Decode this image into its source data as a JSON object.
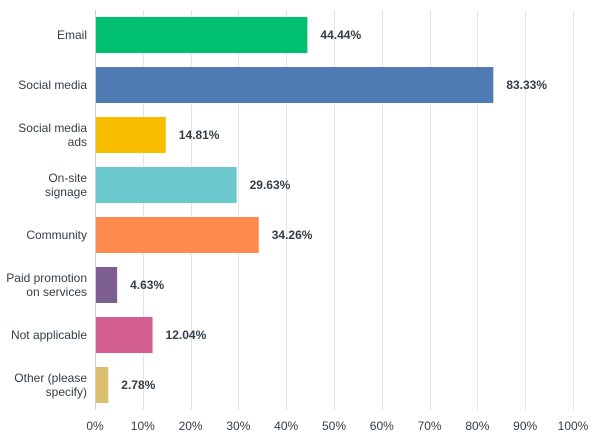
{
  "chart_data": {
    "type": "bar",
    "orientation": "horizontal",
    "categories": [
      [
        "Email"
      ],
      [
        "Social media"
      ],
      [
        "Social media",
        "ads"
      ],
      [
        "On-site",
        "signage"
      ],
      [
        "Community"
      ],
      [
        "Paid promotion",
        "on services"
      ],
      [
        "Not applicable"
      ],
      [
        "Other (please",
        "specify)"
      ]
    ],
    "values": [
      44.44,
      83.33,
      14.81,
      29.63,
      34.26,
      4.63,
      12.04,
      2.78
    ],
    "value_labels": [
      "44.44%",
      "83.33%",
      "14.81%",
      "29.63%",
      "34.26%",
      "4.63%",
      "12.04%",
      "2.78%"
    ],
    "colors": [
      "#00bf6f",
      "#507cb6",
      "#f9be00",
      "#6bc8cd",
      "#ff8b4f",
      "#7d5e90",
      "#d25f90",
      "#dbbf6f"
    ],
    "xlim": [
      0,
      100
    ],
    "x_ticks": [
      0,
      10,
      20,
      30,
      40,
      50,
      60,
      70,
      80,
      90,
      100
    ],
    "x_tick_labels": [
      "0%",
      "10%",
      "20%",
      "30%",
      "40%",
      "50%",
      "60%",
      "70%",
      "80%",
      "90%",
      "100%"
    ],
    "grid": "vertical",
    "title": "",
    "xlabel": "",
    "ylabel": ""
  }
}
